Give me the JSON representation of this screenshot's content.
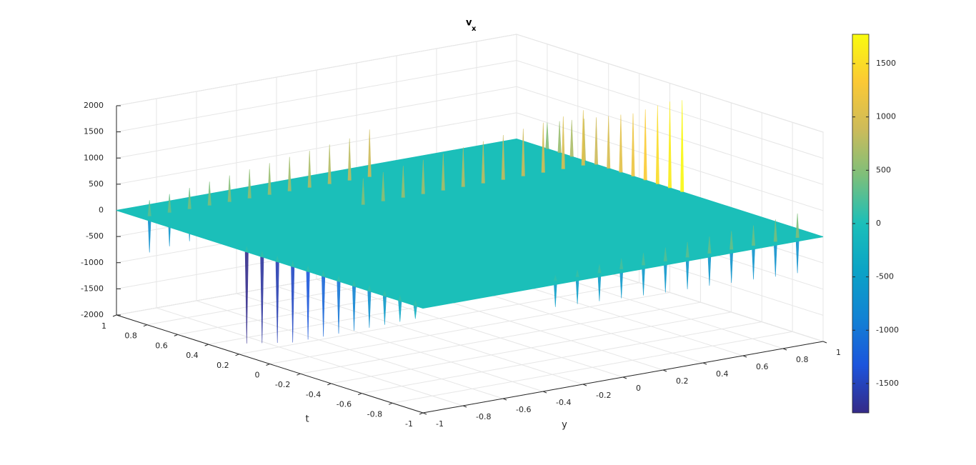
{
  "chart_data": {
    "type": "surface",
    "title": "v",
    "title_subscript": "x",
    "xlabel": "t",
    "ylabel": "y",
    "grid": true,
    "tlim": [
      -1,
      1
    ],
    "tticks": [
      -1,
      -0.8,
      -0.6,
      -0.4,
      -0.2,
      0,
      0.2,
      0.4,
      0.6,
      0.8,
      1
    ],
    "ylim": [
      -1,
      1
    ],
    "yticks": [
      -1,
      -0.8,
      -0.6,
      -0.4,
      -0.2,
      0,
      0.2,
      0.4,
      0.6,
      0.8,
      1
    ],
    "zlim": [
      -2000,
      2000
    ],
    "zticks": [
      -2000,
      -1500,
      -1000,
      -500,
      0,
      500,
      1000,
      1500,
      2000
    ],
    "clim": [
      -1775,
      1775
    ],
    "cticks": [
      -1500,
      -1000,
      -500,
      0,
      500,
      1000,
      1500
    ],
    "colormap": [
      "#352a87",
      "#1c54dc",
      "#1282d4",
      "#0ba3c6",
      "#1bbfb9",
      "#7cbf7b",
      "#cdbb5a",
      "#fbc935",
      "#f9fb0e"
    ],
    "base_value": 0,
    "ridges": [
      {
        "t": [
          0.85,
          0.85,
          0.85,
          0.85,
          0.85,
          0.85,
          0.85,
          0.85,
          0.85,
          0.85,
          0.85,
          0.85
        ],
        "y": [
          -0.95,
          -0.85,
          -0.75,
          -0.65,
          -0.55,
          -0.45,
          -0.35,
          -0.25,
          -0.15,
          -0.05,
          0.05,
          0.15
        ],
        "peaks": [
          300,
          350,
          400,
          450,
          500,
          550,
          600,
          650,
          700,
          750,
          800,
          900
        ],
        "troughs": [
          -700,
          -650,
          -620,
          -600,
          -550,
          -500,
          -480,
          -450,
          -420,
          -400,
          -380,
          -350
        ]
      },
      {
        "t": [
          0.15,
          0.05,
          -0.05,
          -0.15,
          -0.25,
          -0.35,
          -0.45,
          -0.55,
          -0.65,
          -0.75,
          -0.85,
          -0.95
        ],
        "y": [
          -1,
          -1,
          -1,
          -1,
          -1,
          -1,
          -1,
          -1,
          -1,
          -1,
          -1,
          -1
        ],
        "peaks": [
          100,
          100,
          100,
          100,
          100,
          100,
          100,
          100,
          100,
          100,
          100,
          100
        ],
        "troughs": [
          -1750,
          -1650,
          -1550,
          -1450,
          -1300,
          -1150,
          -1000,
          -850,
          -700,
          -550,
          -400,
          -250
        ]
      },
      {
        "t": [
          0.5,
          0.5,
          0.5,
          0.5,
          0.5,
          0.5,
          0.5,
          0.5,
          0.5,
          0.5,
          0.5,
          0.5
        ],
        "y": [
          -0.15,
          -0.05,
          0.05,
          0.15,
          0.25,
          0.35,
          0.45,
          0.55,
          0.65,
          0.75,
          0.85,
          0.95
        ],
        "peaks": [
          500,
          550,
          600,
          650,
          700,
          750,
          800,
          850,
          900,
          950,
          1000,
          1050
        ],
        "troughs": [
          -300,
          -300,
          -300,
          -300,
          -300,
          -300,
          -300,
          -300,
          -300,
          -300,
          -300,
          -300
        ]
      },
      {
        "t": [
          0.8,
          0.72,
          0.64,
          0.56,
          0.48,
          0.4,
          0.32,
          0.24,
          0.16,
          0.08,
          0,
          -0.08
        ],
        "y": [
          1,
          1,
          1,
          1,
          1,
          1,
          1,
          1,
          1,
          1,
          1,
          1
        ],
        "peaks": [
          500,
          600,
          700,
          800,
          900,
          1000,
          1100,
          1200,
          1350,
          1500,
          1650,
          1750
        ],
        "troughs": [
          -100,
          -100,
          -100,
          -100,
          -100,
          -100,
          -100,
          -100,
          -100,
          -100,
          -100,
          -100
        ]
      },
      {
        "t": [
          -0.95,
          -0.95,
          -0.95,
          -0.95,
          -0.95,
          -0.95,
          -0.95,
          -0.95,
          -0.95,
          -0.95,
          -0.95,
          -0.95
        ],
        "y": [
          -0.3,
          -0.19,
          -0.08,
          0.03,
          0.14,
          0.25,
          0.36,
          0.47,
          0.58,
          0.69,
          0.8,
          0.91
        ],
        "peaks": [
          100,
          130,
          160,
          200,
          230,
          260,
          290,
          320,
          350,
          380,
          420,
          460
        ],
        "troughs": [
          -500,
          -520,
          -540,
          -560,
          -580,
          -600,
          -610,
          -620,
          -640,
          -650,
          -670,
          -680
        ]
      }
    ]
  }
}
